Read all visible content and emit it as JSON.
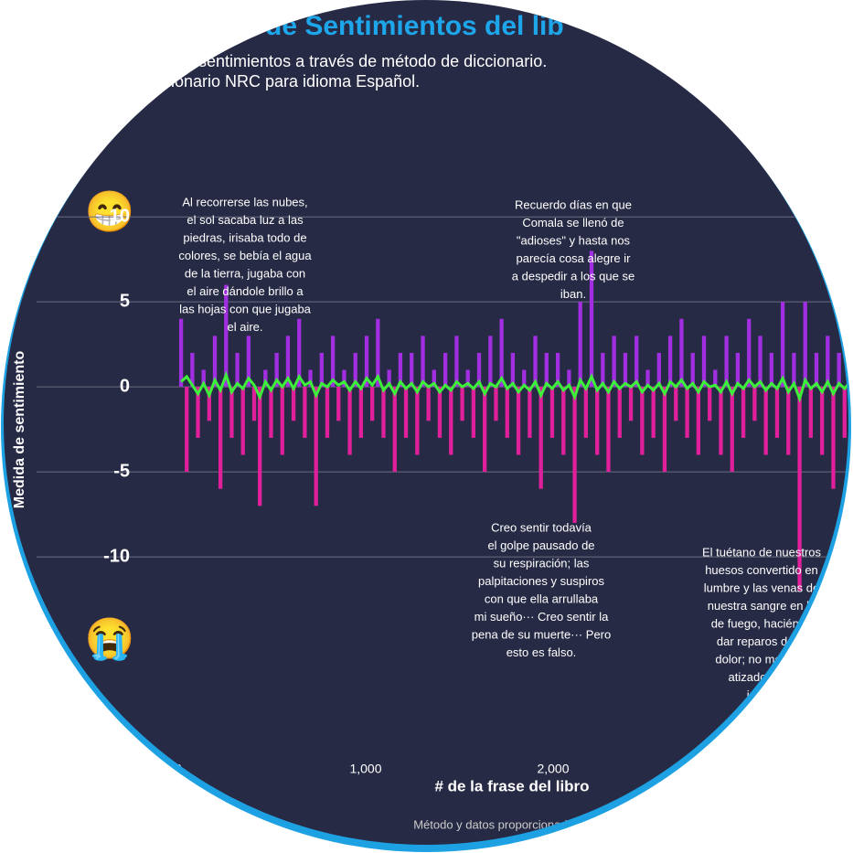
{
  "chart_data": {
    "type": "bar",
    "title": "de Sentimientos del lib",
    "subtitle": [
      "s de sentimientos a través de método de diccionario.",
      "cionario NRC para idioma Español."
    ],
    "ylabel": "Medida de sentimiento",
    "xlabel": "# de la frase del libro",
    "footer": "Método y datos proporcionado",
    "emoji_top": "😁",
    "emoji_bottom": "😭",
    "xlim": [
      0,
      3600
    ],
    "xticks": [
      0,
      {
        "value": 1000,
        "label": "1,000"
      },
      {
        "value": 2000,
        "label": "2,000"
      }
    ],
    "ylim": [
      -20,
      12
    ],
    "yticks": [
      -10,
      -5,
      0,
      5,
      10
    ],
    "grid": true,
    "positive_color": "#a12ee0",
    "negative_color": "#e0209a",
    "line_color": "#3df03a",
    "x": [
      15,
      45,
      75,
      105,
      135,
      165,
      195,
      225,
      255,
      285,
      315,
      345,
      375,
      405,
      435,
      465,
      495,
      525,
      555,
      585,
      615,
      645,
      675,
      705,
      735,
      765,
      795,
      825,
      855,
      885,
      915,
      945,
      975,
      1005,
      1035,
      1065,
      1095,
      1125,
      1155,
      1185,
      1215,
      1245,
      1275,
      1305,
      1335,
      1365,
      1395,
      1425,
      1455,
      1485,
      1515,
      1545,
      1575,
      1605,
      1635,
      1665,
      1695,
      1725,
      1755,
      1785,
      1815,
      1845,
      1875,
      1905,
      1935,
      1965,
      1995,
      2025,
      2055,
      2085,
      2115,
      2145,
      2175,
      2205,
      2235,
      2265,
      2295,
      2325,
      2355,
      2385,
      2415,
      2445,
      2475,
      2505,
      2535,
      2565,
      2595,
      2625,
      2655,
      2685,
      2715,
      2745,
      2775,
      2805,
      2835,
      2865,
      2895,
      2925,
      2955,
      2985,
      3015,
      3045,
      3075,
      3105,
      3135,
      3165,
      3195,
      3225,
      3255,
      3285,
      3315,
      3345,
      3375,
      3405,
      3435,
      3465,
      3495,
      3525,
      3555,
      3585
    ],
    "values": [
      4,
      -5,
      2,
      -3,
      1,
      -2,
      3,
      -6,
      6,
      -3,
      2,
      -4,
      3,
      -2,
      -7,
      1,
      -3,
      2,
      -4,
      3,
      -2,
      4,
      -3,
      1,
      -7,
      2,
      -3,
      3,
      -2,
      1,
      -4,
      2,
      -3,
      3,
      -2,
      4,
      -3,
      1,
      -5,
      2,
      -3,
      2,
      -4,
      3,
      -2,
      1,
      -3,
      2,
      -4,
      3,
      -2,
      1,
      -3,
      2,
      -5,
      3,
      -2,
      4,
      -3,
      2,
      -4,
      1,
      -3,
      3,
      -6,
      2,
      -3,
      2,
      -4,
      1,
      -8,
      5,
      -3,
      8,
      -4,
      2,
      -5,
      3,
      -3,
      2,
      -2,
      3,
      -4,
      1,
      -3,
      2,
      -5,
      3,
      -2,
      4,
      -3,
      2,
      -4,
      3,
      -2,
      1,
      -4,
      3,
      -5,
      2,
      -3,
      4,
      -2,
      3,
      -4,
      2,
      -3,
      5,
      -4,
      2,
      -12,
      5,
      -3,
      2,
      -4,
      3,
      -6,
      2,
      -3,
      2
    ],
    "smoothed": [
      0.3,
      0.6,
      0.1,
      -0.4,
      0.2,
      -0.5,
      0.4,
      -0.2,
      0.7,
      -0.3,
      0.2,
      -0.1,
      0.5,
      0.1,
      -0.6,
      0.3,
      -0.2,
      0.4,
      0.0,
      0.5,
      -0.1,
      0.6,
      0.1,
      0.3,
      -0.5,
      0.2,
      0.0,
      0.4,
      0.1,
      0.3,
      -0.2,
      0.3,
      -0.1,
      0.5,
      0.1,
      0.6,
      -0.2,
      0.2,
      -0.4,
      0.3,
      -0.1,
      0.2,
      -0.3,
      0.3,
      0.0,
      0.2,
      -0.3,
      0.1,
      -0.2,
      0.3,
      0.0,
      0.2,
      -0.1,
      0.3,
      -0.4,
      0.2,
      0.0,
      0.5,
      -0.1,
      0.2,
      -0.3,
      0.1,
      -0.2,
      0.3,
      -0.5,
      0.2,
      -0.1,
      0.3,
      -0.2,
      0.1,
      -0.6,
      0.4,
      -0.1,
      0.6,
      -0.2,
      0.2,
      -0.3,
      0.3,
      -0.1,
      0.2,
      0.0,
      0.3,
      -0.3,
      0.1,
      -0.2,
      0.2,
      -0.4,
      0.3,
      0.0,
      0.4,
      -0.1,
      0.2,
      -0.3,
      0.3,
      0.0,
      0.1,
      -0.3,
      0.3,
      -0.4,
      0.2,
      -0.1,
      0.4,
      0.0,
      0.3,
      -0.2,
      0.2,
      -0.1,
      0.5,
      -0.3,
      0.2,
      -0.7,
      0.4,
      -0.1,
      0.2,
      -0.3,
      0.3,
      -0.4,
      0.2,
      -0.1,
      0.3
    ],
    "annotations": [
      [
        "Al recorrerse las nubes,",
        "el sol sacaba luz a las",
        "piedras, irisaba todo de",
        "colores, se bebía el agua",
        "de la tierra, jugaba con",
        "el aire dándole brillo a",
        "las hojas con que jugaba",
        "el aire."
      ],
      [
        "Recuerdo días en que",
        "Comala se llenó de",
        "\"adioses\" y hasta nos",
        "parecía cosa alegre ir",
        "a despedir a los que se",
        "iban."
      ],
      [
        "Creo sentir todavía",
        "el golpe pausado de",
        "su respiración; las",
        "palpitaciones y suspiros",
        "con que ella arrullaba",
        "mi sueño··· Creo sentir la",
        "pena de su muerte··· Pero",
        "esto es falso."
      ],
      [
        "El tuétano de nuestros",
        "huesos convertido en",
        "lumbre y las venas de",
        "nuestra sangre en hi",
        "de fuego, haciéndo",
        "dar reparos de in",
        "dolor; no mengua",
        "atizado siem",
        "ira de"
      ]
    ]
  }
}
